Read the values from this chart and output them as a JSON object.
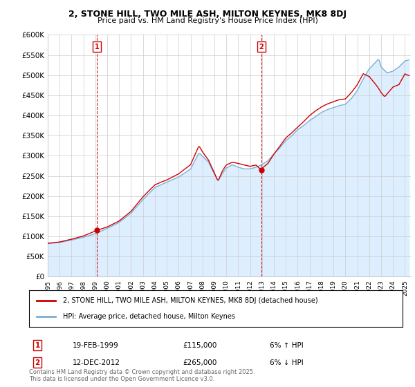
{
  "title": "2, STONE HILL, TWO MILE ASH, MILTON KEYNES, MK8 8DJ",
  "subtitle": "Price paid vs. HM Land Registry's House Price Index (HPI)",
  "legend_line1": "2, STONE HILL, TWO MILE ASH, MILTON KEYNES, MK8 8DJ (detached house)",
  "legend_line2": "HPI: Average price, detached house, Milton Keynes",
  "annotation1_label": "1",
  "annotation1_date": "19-FEB-1999",
  "annotation1_price": "£115,000",
  "annotation1_hpi": "6% ↑ HPI",
  "annotation1_year": 1999.13,
  "annotation1_value": 115000,
  "annotation2_label": "2",
  "annotation2_date": "12-DEC-2012",
  "annotation2_price": "£265,000",
  "annotation2_hpi": "6% ↓ HPI",
  "annotation2_year": 2012.95,
  "annotation2_value": 265000,
  "footer": "Contains HM Land Registry data © Crown copyright and database right 2025.\nThis data is licensed under the Open Government Licence v3.0.",
  "hpi_line_color": "#7bafd4",
  "hpi_fill_color": "#ddeeff",
  "price_color": "#cc0000",
  "background_color": "#ffffff",
  "grid_color": "#cccccc",
  "ylim": [
    0,
    600000
  ],
  "yticks": [
    0,
    50000,
    100000,
    150000,
    200000,
    250000,
    300000,
    350000,
    400000,
    450000,
    500000,
    550000,
    600000
  ],
  "ytick_labels": [
    "£0",
    "£50K",
    "£100K",
    "£150K",
    "£200K",
    "£250K",
    "£300K",
    "£350K",
    "£400K",
    "£450K",
    "£500K",
    "£550K",
    "£600K"
  ],
  "xlim_start": 1995.0,
  "xlim_end": 2025.5
}
